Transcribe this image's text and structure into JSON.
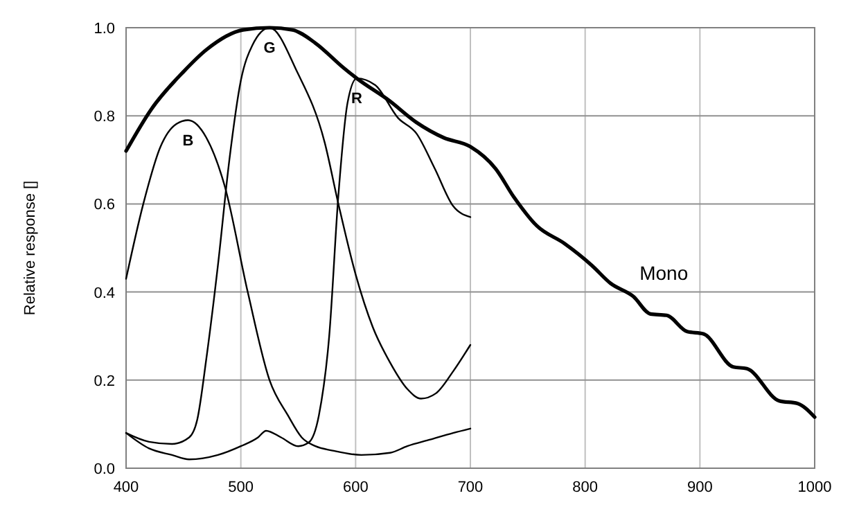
{
  "chart_data": {
    "type": "line",
    "ylabel": "Relative response []",
    "xlim": [
      400,
      1000
    ],
    "xticks": [
      400,
      500,
      600,
      700,
      800,
      900,
      1000
    ],
    "ylim": [
      0,
      1
    ],
    "yticks": [
      {
        "value": 0,
        "label": "0.0"
      },
      {
        "value": 0.2,
        "label": "0.2"
      },
      {
        "value": 0.4,
        "label": "0.4"
      },
      {
        "value": 0.6,
        "label": "0.6"
      },
      {
        "value": 0.8,
        "label": "0.8"
      },
      {
        "value": 1,
        "label": "1.0"
      }
    ],
    "grid": true,
    "marker": "none",
    "line_style": "solid",
    "series": [
      {
        "name": "Mono",
        "color": "#000000",
        "x": [
          400,
          422,
          450,
          470,
          502,
          525,
          545,
          565,
          589,
          601,
          629,
          653,
          677,
          700,
          722,
          738,
          758,
          782,
          806,
          822,
          842,
          857,
          871,
          889,
          903,
          929,
          941,
          969,
          985,
          1000
        ],
        "values": [
          0.72,
          0.815,
          0.9,
          0.95,
          0.995,
          1.0,
          0.995,
          0.965,
          0.91,
          0.885,
          0.835,
          0.785,
          0.75,
          0.73,
          0.68,
          0.615,
          0.55,
          0.51,
          0.46,
          0.42,
          0.39,
          0.35,
          0.347,
          0.31,
          0.305,
          0.23,
          0.226,
          0.153,
          0.147,
          0.116
        ]
      },
      {
        "name": "B",
        "color": "#000000",
        "x": [
          400,
          415,
          430,
          443,
          454,
          470,
          486,
          506,
          525,
          541,
          553,
          565,
          580,
          605,
          630,
          645,
          665,
          685,
          700
        ],
        "values": [
          0.43,
          0.6,
          0.73,
          0.78,
          0.79,
          0.75,
          0.64,
          0.4,
          0.2,
          0.12,
          0.07,
          0.05,
          0.04,
          0.03,
          0.035,
          0.05,
          0.065,
          0.08,
          0.09
        ]
      },
      {
        "name": "G",
        "color": "#000000",
        "x": [
          400,
          420,
          440,
          455,
          462,
          470,
          480,
          490,
          500,
          510,
          525,
          549,
          573,
          585,
          600,
          615,
          630,
          645,
          657,
          670,
          685,
          700
        ],
        "values": [
          0.08,
          0.06,
          0.055,
          0.07,
          0.11,
          0.25,
          0.46,
          0.7,
          0.88,
          0.96,
          1.0,
          0.9,
          0.74,
          0.6,
          0.44,
          0.32,
          0.24,
          0.18,
          0.158,
          0.17,
          0.22,
          0.28
        ]
      },
      {
        "name": "R",
        "color": "#000000",
        "x": [
          400,
          420,
          440,
          455,
          480,
          500,
          515,
          522,
          535,
          550,
          559,
          568,
          577,
          585,
          593,
          601,
          617,
          637,
          653,
          669,
          685,
          700
        ],
        "values": [
          0.08,
          0.045,
          0.03,
          0.02,
          0.03,
          0.05,
          0.07,
          0.085,
          0.07,
          0.05,
          0.058,
          0.12,
          0.3,
          0.62,
          0.83,
          0.885,
          0.87,
          0.795,
          0.76,
          0.68,
          0.595,
          0.57
        ]
      }
    ]
  }
}
